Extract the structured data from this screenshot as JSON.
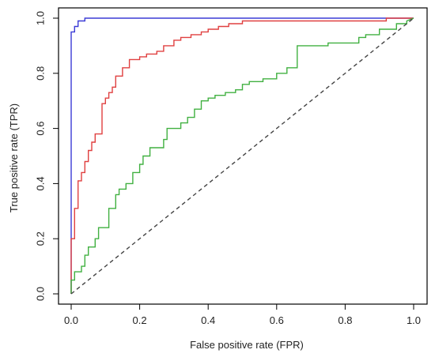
{
  "chart_data": {
    "type": "line",
    "title": "",
    "xlabel": "False positive rate (FPR)",
    "ylabel": "True positive rate (TPR)",
    "xlim": [
      0,
      1
    ],
    "ylim": [
      0,
      1
    ],
    "x_ticks": [
      "0.0",
      "0.2",
      "0.4",
      "0.6",
      "0.8",
      "1.0"
    ],
    "y_ticks": [
      "0.0",
      "0.2",
      "0.4",
      "0.6",
      "0.8",
      "1.0"
    ],
    "grid": false,
    "legend": "none",
    "series": [
      {
        "color": "#3b3bd6",
        "dash": "solid",
        "x": [
          0,
          0,
          0.01,
          0.01,
          0.02,
          0.02,
          0.04,
          0.04,
          0.06,
          1.0
        ],
        "y": [
          0,
          0.95,
          0.95,
          0.97,
          0.97,
          0.99,
          0.99,
          1.0,
          1.0,
          1.0
        ]
      },
      {
        "color": "#e04040",
        "dash": "solid",
        "x": [
          0,
          0,
          0.01,
          0.01,
          0.02,
          0.02,
          0.03,
          0.03,
          0.04,
          0.04,
          0.05,
          0.05,
          0.06,
          0.06,
          0.07,
          0.07,
          0.09,
          0.09,
          0.1,
          0.1,
          0.11,
          0.11,
          0.12,
          0.12,
          0.13,
          0.13,
          0.15,
          0.15,
          0.17,
          0.17,
          0.2,
          0.2,
          0.22,
          0.22,
          0.25,
          0.25,
          0.27,
          0.27,
          0.3,
          0.3,
          0.32,
          0.32,
          0.35,
          0.35,
          0.38,
          0.38,
          0.4,
          0.4,
          0.43,
          0.43,
          0.46,
          0.46,
          0.5,
          0.5,
          0.55,
          0.55,
          0.6,
          0.6,
          0.7,
          0.7,
          0.8,
          0.8,
          0.92,
          0.92,
          1.0
        ],
        "y": [
          0,
          0.2,
          0.2,
          0.31,
          0.31,
          0.41,
          0.41,
          0.44,
          0.44,
          0.48,
          0.48,
          0.52,
          0.52,
          0.55,
          0.55,
          0.58,
          0.58,
          0.69,
          0.69,
          0.71,
          0.71,
          0.73,
          0.73,
          0.75,
          0.75,
          0.79,
          0.79,
          0.82,
          0.82,
          0.85,
          0.85,
          0.86,
          0.86,
          0.87,
          0.87,
          0.88,
          0.88,
          0.9,
          0.9,
          0.92,
          0.92,
          0.93,
          0.93,
          0.94,
          0.94,
          0.95,
          0.95,
          0.96,
          0.96,
          0.97,
          0.97,
          0.98,
          0.98,
          0.99,
          0.99,
          0.99,
          0.99,
          0.99,
          0.99,
          0.99,
          0.99,
          0.99,
          0.99,
          1.0,
          1.0
        ]
      },
      {
        "color": "#40b040",
        "dash": "solid",
        "x": [
          0,
          0,
          0.01,
          0.01,
          0.03,
          0.03,
          0.04,
          0.04,
          0.05,
          0.05,
          0.07,
          0.07,
          0.08,
          0.08,
          0.11,
          0.11,
          0.13,
          0.13,
          0.14,
          0.14,
          0.16,
          0.16,
          0.18,
          0.18,
          0.2,
          0.2,
          0.21,
          0.21,
          0.23,
          0.23,
          0.25,
          0.25,
          0.27,
          0.27,
          0.28,
          0.28,
          0.32,
          0.32,
          0.34,
          0.34,
          0.36,
          0.36,
          0.38,
          0.38,
          0.4,
          0.4,
          0.42,
          0.42,
          0.45,
          0.45,
          0.48,
          0.48,
          0.5,
          0.5,
          0.52,
          0.52,
          0.56,
          0.56,
          0.6,
          0.6,
          0.63,
          0.63,
          0.66,
          0.66,
          0.75,
          0.75,
          0.84,
          0.84,
          0.86,
          0.86,
          0.9,
          0.9,
          0.95,
          0.95,
          0.98,
          0.98,
          1.0
        ],
        "y": [
          0,
          0.05,
          0.05,
          0.08,
          0.08,
          0.1,
          0.1,
          0.14,
          0.14,
          0.17,
          0.17,
          0.2,
          0.2,
          0.24,
          0.24,
          0.31,
          0.31,
          0.36,
          0.36,
          0.38,
          0.38,
          0.4,
          0.4,
          0.44,
          0.44,
          0.47,
          0.47,
          0.5,
          0.5,
          0.53,
          0.53,
          0.53,
          0.53,
          0.56,
          0.56,
          0.6,
          0.6,
          0.62,
          0.62,
          0.64,
          0.64,
          0.67,
          0.67,
          0.7,
          0.7,
          0.71,
          0.71,
          0.72,
          0.72,
          0.73,
          0.73,
          0.74,
          0.74,
          0.76,
          0.76,
          0.77,
          0.77,
          0.78,
          0.78,
          0.8,
          0.8,
          0.82,
          0.82,
          0.9,
          0.9,
          0.91,
          0.91,
          0.93,
          0.93,
          0.94,
          0.94,
          0.96,
          0.96,
          0.98,
          0.98,
          0.99,
          1.0
        ]
      },
      {
        "color": "#444444",
        "dash": "dashed",
        "x": [
          0,
          1
        ],
        "y": [
          0,
          1
        ]
      }
    ]
  }
}
